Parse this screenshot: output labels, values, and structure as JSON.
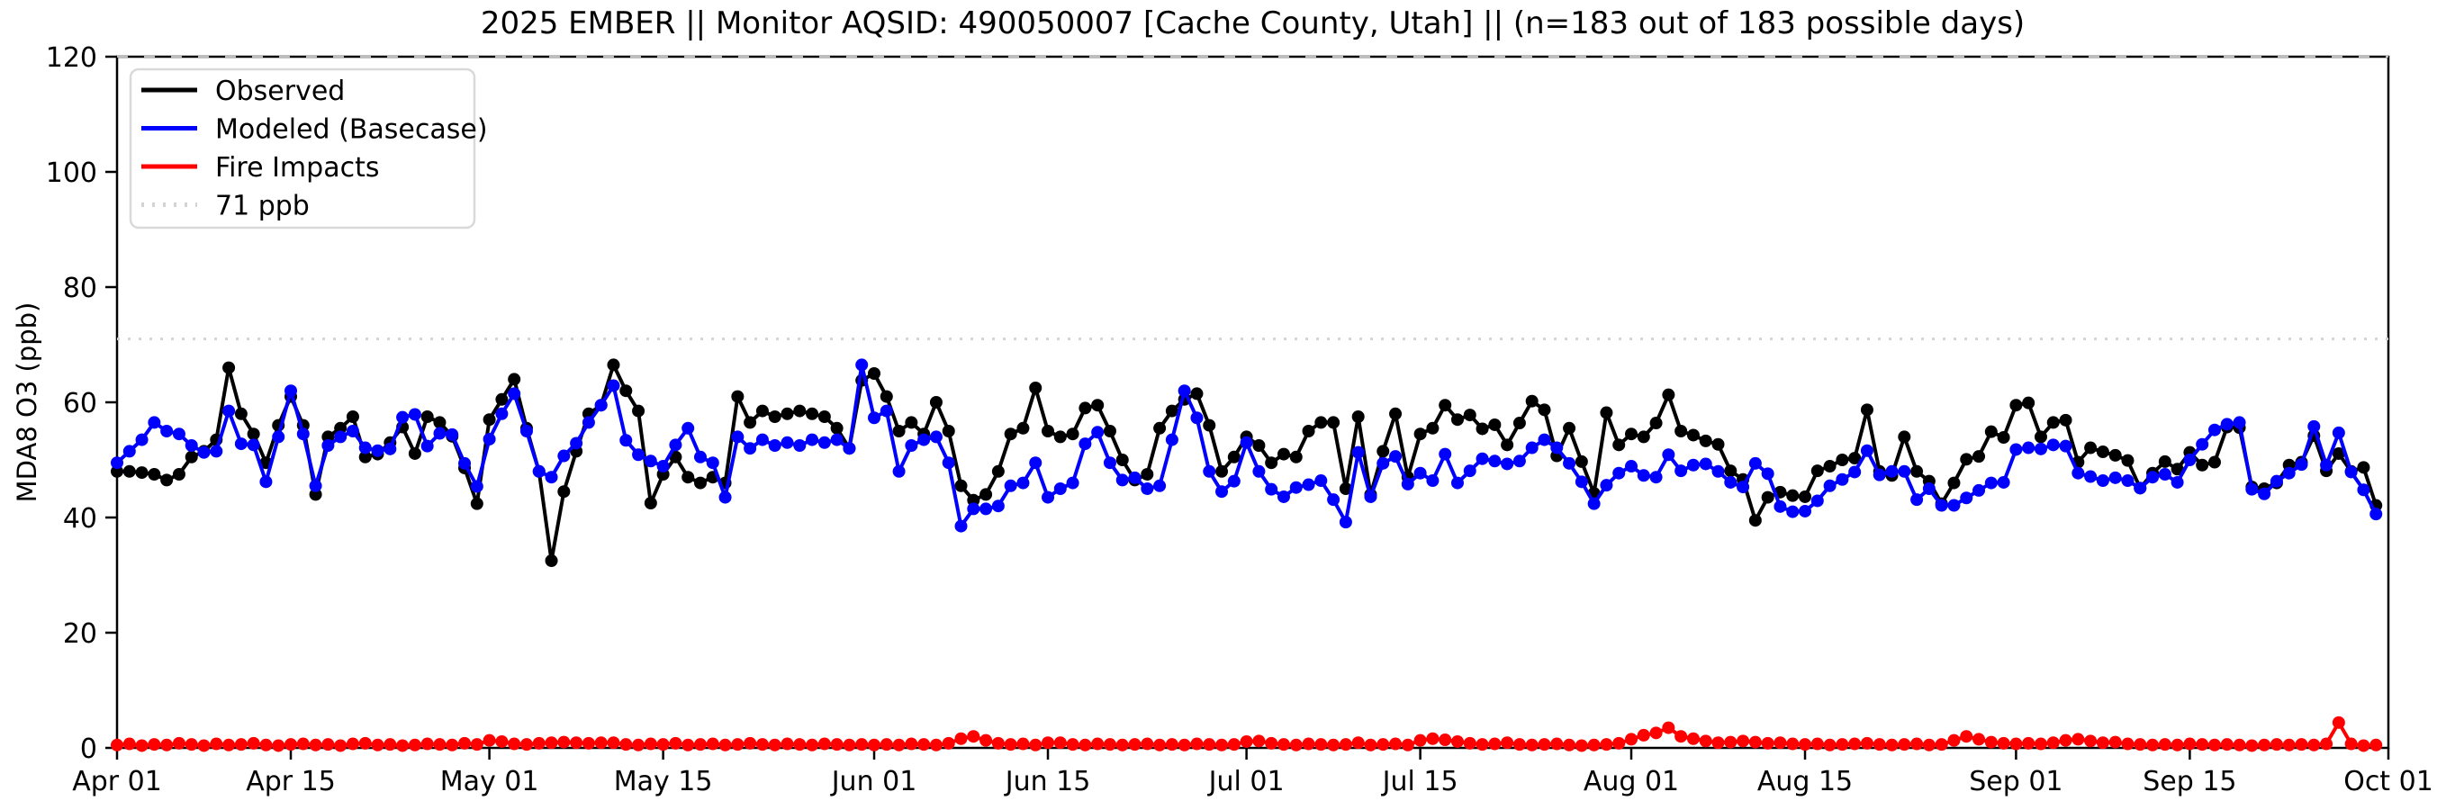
{
  "title": "2025 EMBER || Monitor AQSID: 490050007 [Cache County, Utah] || (n=183 out of 183 possible days)",
  "y_axis": {
    "label": "MDA8 O3 (ppb)",
    "ticks": [
      0,
      20,
      40,
      60,
      80,
      100,
      120
    ],
    "min": 0,
    "max": 120
  },
  "x_axis": {
    "ticks": [
      {
        "label": "Apr 01",
        "day": 0
      },
      {
        "label": "Apr 15",
        "day": 14
      },
      {
        "label": "May 01",
        "day": 30
      },
      {
        "label": "May 15",
        "day": 44
      },
      {
        "label": "Jun 01",
        "day": 61
      },
      {
        "label": "Jun 15",
        "day": 75
      },
      {
        "label": "Jul 01",
        "day": 91
      },
      {
        "label": "Jul 15",
        "day": 105
      },
      {
        "label": "Aug 01",
        "day": 122
      },
      {
        "label": "Aug 15",
        "day": 136
      },
      {
        "label": "Sep 01",
        "day": 153
      },
      {
        "label": "Sep 15",
        "day": 167
      },
      {
        "label": "Oct 01",
        "day": 183
      }
    ],
    "n_days": 183
  },
  "legend": [
    {
      "label": "Observed",
      "color": "#000000",
      "style": "solid"
    },
    {
      "label": "Modeled (Basecase)",
      "color": "#0000ff",
      "style": "solid"
    },
    {
      "label": "Fire Impacts",
      "color": "#ff0000",
      "style": "solid"
    },
    {
      "label": "71 ppb",
      "color": "#d3d3d3",
      "style": "dotted"
    }
  ],
  "chart_data": {
    "type": "line",
    "title": "2025 EMBER || Monitor AQSID: 490050007 [Cache County, Utah] || (n=183 out of 183 possible days)",
    "xlabel": "",
    "ylabel": "MDA8 O3 (ppb)",
    "ylim": [
      0,
      120
    ],
    "grid": false,
    "legend_position": "upper-left",
    "threshold": {
      "value": 71,
      "color": "#d3d3d3",
      "style": "dotted"
    },
    "x_tick_labels": [
      "Apr 01",
      "Apr 15",
      "May 01",
      "May 15",
      "Jun 01",
      "Jun 15",
      "Jul 01",
      "Jul 15",
      "Aug 01",
      "Aug 15",
      "Sep 01",
      "Sep 15",
      "Oct 01"
    ],
    "x_tick_days": [
      0,
      14,
      30,
      44,
      61,
      75,
      91,
      105,
      122,
      136,
      153,
      167,
      183
    ],
    "series": [
      {
        "name": "Observed",
        "color": "#000000",
        "marker": "circle",
        "values": [
          48,
          48,
          47.8,
          47.5,
          46.5,
          47.5,
          50.5,
          51.5,
          53.5,
          66,
          58,
          54.5,
          49.5,
          56,
          61,
          56,
          44,
          54,
          55.5,
          57.5,
          50.5,
          51,
          53,
          55.7,
          51.1,
          57.5,
          56.5,
          54.1,
          48.6,
          42.4,
          57,
          60.5,
          64,
          55.5,
          48,
          32.5,
          44.5,
          51.5,
          58,
          59.5,
          66.5,
          62,
          58.5,
          42.5,
          47.5,
          50.5,
          47,
          46,
          47,
          46,
          61,
          56.5,
          58.5,
          57.5,
          58,
          58.5,
          58,
          57.5,
          55.5,
          52,
          63.8,
          65,
          61,
          55,
          56.5,
          54.5,
          60,
          55,
          45.5,
          43,
          44,
          48,
          54.5,
          55.5,
          62.5,
          55,
          54,
          54.5,
          59,
          59.5,
          55,
          50,
          46.5,
          47.5,
          55.5,
          58.5,
          60.5,
          61.5,
          56,
          48,
          50.5,
          54,
          52.5,
          49.5,
          51,
          50.5,
          55,
          56.5,
          56.5,
          45,
          57.5,
          44,
          51.5,
          58,
          47,
          54.5,
          55.5,
          59.5,
          57,
          57.8,
          55.4,
          56.1,
          52.6,
          56.4,
          60.2,
          58.7,
          50.7,
          55.5,
          49.7,
          44.2,
          58.2,
          52.6,
          54.5,
          54,
          56.4,
          61.3,
          55,
          54.3,
          53.3,
          52.7,
          48.1,
          46.6,
          39.5,
          43.5,
          44.4,
          43.8,
          43.6,
          48.1,
          48.9,
          50,
          50.3,
          58.7,
          48,
          47.3,
          54,
          48,
          46.3,
          42.4,
          46,
          50.1,
          50.6,
          54.9,
          53.9,
          59.5,
          59.9,
          54,
          56.5,
          56.9,
          49.6,
          52.1,
          51.4,
          50.8,
          49.9,
          45.1,
          47.7,
          49.7,
          48.4,
          51.3,
          49.1,
          49.6,
          55.7,
          55.6,
          45.3,
          45,
          46,
          49.1,
          49.6,
          54.2,
          48.1,
          51.1,
          48,
          48.7,
          42.1
        ]
      },
      {
        "name": "Modeled (Basecase)",
        "color": "#0000ff",
        "marker": "circle",
        "values": [
          49.5,
          51.5,
          53.5,
          56.5,
          55,
          54.5,
          52.5,
          51.3,
          51.5,
          58.5,
          52.8,
          52.6,
          46.2,
          54,
          62,
          54.5,
          45.5,
          52.5,
          54,
          55,
          52.1,
          51.6,
          51.9,
          57.4,
          57.9,
          52.4,
          54.6,
          54.4,
          49.4,
          45.4,
          53.6,
          58,
          61.5,
          55,
          48,
          47,
          50.7,
          52.9,
          56.5,
          59.5,
          62.9,
          53.4,
          50.9,
          49.8,
          48.9,
          52.6,
          55.5,
          50.5,
          49.5,
          43.5,
          54,
          52,
          53.5,
          52.5,
          53,
          52.5,
          53.5,
          53,
          53.5,
          52,
          66.5,
          57.3,
          58.5,
          48,
          52.5,
          53.5,
          54,
          49.5,
          38.5,
          41.5,
          41.5,
          42,
          45.5,
          46,
          49.5,
          43.5,
          45,
          46,
          52.8,
          54.8,
          49.5,
          46.5,
          46.9,
          45,
          45.5,
          53.5,
          62,
          57.3,
          48,
          44.5,
          46.3,
          53,
          48,
          44.9,
          43.6,
          45.2,
          45.7,
          46.4,
          43.1,
          39.2,
          51.3,
          43.6,
          49.4,
          50.6,
          45.8,
          47.7,
          46.4,
          51,
          46,
          48.1,
          50.2,
          49.8,
          49.3,
          49.8,
          52.1,
          53.5,
          52.1,
          49.4,
          46.2,
          42.4,
          45.6,
          47.7,
          48.9,
          47.3,
          47,
          50.9,
          48.1,
          49.1,
          49.3,
          48,
          46.1,
          45.3,
          49.4,
          47.6,
          41.9,
          41,
          41.1,
          42.9,
          45.5,
          46.6,
          47.9,
          51.6,
          47.4,
          48,
          48,
          43.1,
          45,
          42.1,
          42.1,
          43.4,
          44.7,
          46,
          46.1,
          51.8,
          52.1,
          51.9,
          52.6,
          52.4,
          47.7,
          47.1,
          46.4,
          46.9,
          46.4,
          45.1,
          47,
          47.5,
          46.1,
          50,
          52.7,
          55.2,
          56.2,
          56.5,
          44.9,
          44.1,
          46.3,
          47.7,
          49.2,
          55.8,
          49.1,
          54.7,
          47.9,
          44.8,
          40.6
        ]
      },
      {
        "name": "Fire Impacts",
        "color": "#ff0000",
        "marker": "circle",
        "values": [
          0.5,
          0.7,
          0.4,
          0.6,
          0.5,
          0.8,
          0.6,
          0.4,
          0.7,
          0.5,
          0.6,
          0.8,
          0.5,
          0.4,
          0.6,
          0.7,
          0.5,
          0.6,
          0.4,
          0.7,
          0.8,
          0.5,
          0.6,
          0.4,
          0.5,
          0.7,
          0.6,
          0.5,
          0.8,
          0.6,
          1.3,
          1.1,
          0.7,
          0.6,
          0.8,
          0.9,
          1.0,
          0.9,
          0.8,
          0.9,
          0.9,
          0.6,
          0.5,
          0.7,
          0.6,
          0.8,
          0.5,
          0.6,
          0.7,
          0.5,
          0.6,
          0.8,
          0.6,
          0.5,
          0.7,
          0.6,
          0.5,
          0.7,
          0.6,
          0.5,
          0.6,
          0.5,
          0.6,
          0.5,
          0.7,
          0.6,
          0.5,
          0.8,
          1.6,
          2.0,
          1.3,
          0.8,
          0.6,
          0.7,
          0.5,
          0.9,
          0.9,
          0.6,
          0.5,
          0.7,
          0.6,
          0.5,
          0.6,
          0.7,
          0.5,
          0.6,
          0.5,
          0.7,
          0.6,
          0.5,
          0.6,
          1.1,
          1.2,
          0.8,
          0.6,
          0.5,
          0.7,
          0.6,
          0.5,
          0.6,
          0.9,
          0.5,
          0.6,
          0.7,
          0.5,
          1.3,
          1.6,
          1.4,
          1.1,
          0.8,
          0.6,
          0.7,
          0.9,
          0.6,
          0.5,
          0.6,
          0.7,
          0.5,
          0.4,
          0.5,
          0.6,
          0.8,
          1.5,
          2.2,
          2.6,
          3.5,
          2.0,
          1.6,
          1.2,
          0.9,
          1.0,
          1.2,
          1.0,
          0.8,
          0.9,
          0.7,
          0.6,
          0.7,
          0.5,
          0.6,
          0.7,
          0.8,
          0.6,
          0.5,
          0.6,
          0.7,
          0.5,
          0.6,
          1.3,
          2.0,
          1.5,
          1.0,
          0.8,
          0.7,
          0.8,
          0.7,
          0.9,
          1.3,
          1.5,
          1.2,
          0.9,
          1.0,
          0.7,
          0.6,
          0.5,
          0.6,
          0.5,
          0.7,
          0.6,
          0.5,
          0.6,
          0.5,
          0.4,
          0.5,
          0.6,
          0.5,
          0.6,
          0.5,
          0.7,
          4.4,
          0.7,
          0.4,
          0.5
        ]
      }
    ]
  }
}
